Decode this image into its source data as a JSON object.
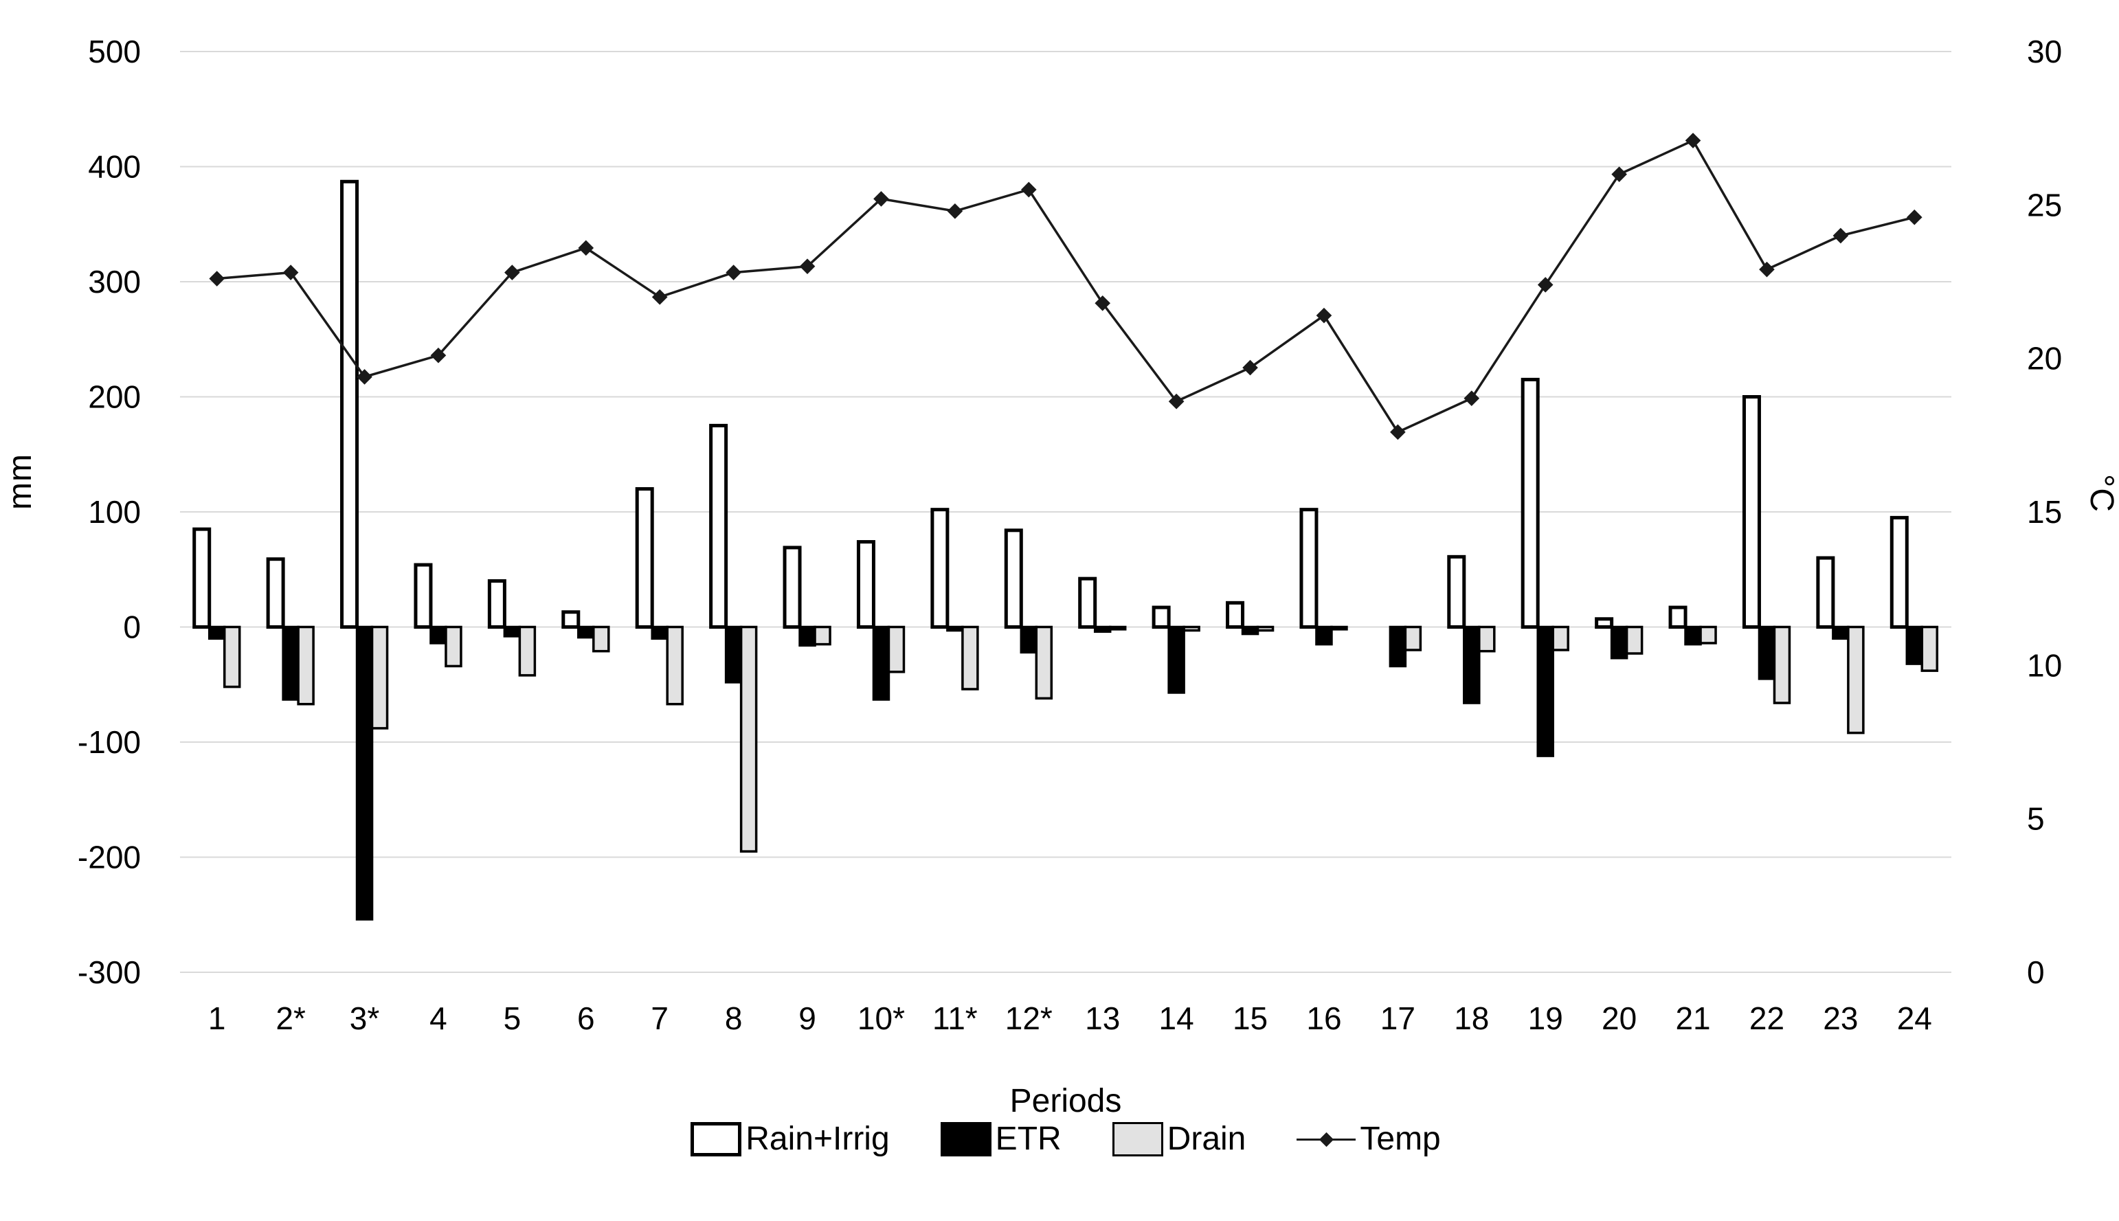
{
  "chart_data": {
    "type": "combo-bar-line",
    "title": "",
    "xlabel": "Periods",
    "ylabel_left": "mm",
    "ylabel_right": "°C",
    "categories": [
      "1",
      "2*",
      "3*",
      "4",
      "5",
      "6",
      "7",
      "8",
      "9",
      "10*",
      "11*",
      "12*",
      "13",
      "14",
      "15",
      "16",
      "17",
      "18",
      "19",
      "20",
      "21",
      "22",
      "23",
      "24"
    ],
    "y_axis_left": {
      "min": -300,
      "max": 500,
      "step": 100,
      "ticks": [
        500,
        400,
        300,
        200,
        100,
        0,
        -100,
        -200,
        -300
      ]
    },
    "y_axis_right": {
      "min": 0,
      "max": 30,
      "step": 5,
      "ticks": [
        30,
        25,
        20,
        15,
        10,
        5,
        0
      ]
    },
    "grid": "horizontal",
    "legend_position": "bottom",
    "series": [
      {
        "name": "Rain+Irrig",
        "type": "bar",
        "axis": "left",
        "fill": "#ffffff",
        "stroke": "#000000",
        "values": [
          85,
          59,
          387,
          54,
          40,
          13,
          120,
          175,
          69,
          74,
          102,
          84,
          42,
          17,
          21,
          102,
          0,
          61,
          215,
          7,
          17,
          200,
          60,
          95
        ]
      },
      {
        "name": "ETR",
        "type": "bar",
        "axis": "left",
        "fill": "#000000",
        "stroke": "#000000",
        "values": [
          -10,
          -63,
          -254,
          -14,
          -8,
          -9,
          -10,
          -48,
          -16,
          -63,
          -3,
          -22,
          -4,
          -57,
          -6,
          -15,
          -34,
          -66,
          -112,
          -27,
          -15,
          -45,
          -10,
          -32
        ]
      },
      {
        "name": "Drain",
        "type": "bar",
        "axis": "left",
        "fill": "#e2e2e2",
        "stroke": "#000000",
        "values": [
          -52,
          -67,
          -88,
          -34,
          -42,
          -21,
          -67,
          -195,
          -15,
          -39,
          -54,
          -62,
          -2,
          -3,
          -3,
          -2,
          -20,
          -21,
          -20,
          -23,
          -14,
          -66,
          -92,
          -38
        ]
      },
      {
        "name": "Temp",
        "type": "line",
        "axis": "right",
        "stroke": "#1a1a1a",
        "marker": "diamond",
        "values": [
          22.6,
          22.8,
          19.4,
          20.1,
          22.8,
          23.6,
          22.0,
          22.8,
          23.0,
          25.2,
          24.8,
          25.5,
          21.8,
          18.6,
          19.7,
          21.4,
          17.6,
          18.7,
          22.4,
          26.0,
          27.1,
          22.9,
          24.0,
          24.6
        ]
      }
    ],
    "legend": [
      {
        "label": "Rain+Irrig"
      },
      {
        "label": "ETR"
      },
      {
        "label": "Drain"
      },
      {
        "label": "Temp"
      }
    ],
    "colors": {
      "grid": "#d9d9d9",
      "text": "#000000",
      "line": "#1a1a1a",
      "drain_fill": "#e2e2e2"
    }
  }
}
